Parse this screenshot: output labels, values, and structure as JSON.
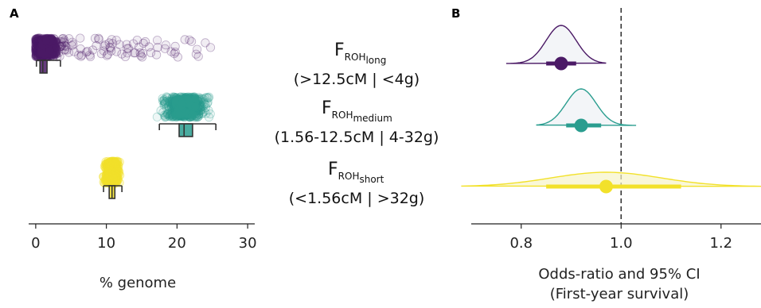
{
  "panels": {
    "a_label": "A",
    "b_label": "B"
  },
  "categories": [
    {
      "main": "F",
      "sub": "ROH",
      "subsub": "long",
      "range": "(>12.5cM | <4g)",
      "color": "#4b1a66"
    },
    {
      "main": "F",
      "sub": "ROH",
      "subsub": "medium",
      "range": "(1.56-12.5cM | 4-32g)",
      "color": "#2a9d8f"
    },
    {
      "main": "F",
      "sub": "ROH",
      "subsub": "short",
      "range": "(<1.56cM | >32g)",
      "color": "#f2e12a"
    }
  ],
  "chart_data": [
    {
      "type": "scatter",
      "panel": "A",
      "xlabel": "% genome",
      "ylabel": "",
      "xlim": [
        -1,
        31
      ],
      "xticks": [
        0,
        10,
        20,
        30
      ],
      "series": [
        {
          "category": "long",
          "median": 1.0,
          "q1": 0.6,
          "q3": 1.6,
          "whisker_low": 0.1,
          "whisker_high": 3.5,
          "range": [
            0,
            25
          ]
        },
        {
          "category": "medium",
          "median": 21.0,
          "q1": 20.3,
          "q3": 22.2,
          "whisker_low": 17.5,
          "whisker_high": 25.5,
          "range": [
            16.5,
            29.5
          ]
        },
        {
          "category": "short",
          "median": 10.8,
          "q1": 10.4,
          "q3": 11.2,
          "whisker_low": 9.6,
          "whisker_high": 12.2,
          "range": [
            8.7,
            12.9
          ]
        }
      ],
      "legend": "none",
      "grid": false
    },
    {
      "type": "line",
      "panel": "B",
      "xlabel": "Odds-ratio and 95% CI",
      "xlabel2": "(First-year survival)",
      "xlim": [
        0.7,
        1.28
      ],
      "xticks": [
        0.8,
        1.0,
        1.2
      ],
      "xtick_labels": [
        "0.8",
        "1.0",
        "1.2"
      ],
      "reference_line": 1.0,
      "series": [
        {
          "category": "long",
          "estimate": 0.88,
          "ci": [
            0.85,
            0.91
          ],
          "density_sd": 0.03,
          "density_range": [
            0.77,
            0.97
          ]
        },
        {
          "category": "medium",
          "estimate": 0.92,
          "ci": [
            0.89,
            0.96
          ],
          "density_sd": 0.03,
          "density_range": [
            0.83,
            1.03
          ]
        },
        {
          "category": "short",
          "estimate": 0.97,
          "ci": [
            0.85,
            1.12
          ],
          "density_sd": 0.11,
          "density_range": [
            0.68,
            1.28
          ]
        }
      ],
      "legend": "none",
      "grid": false
    }
  ]
}
